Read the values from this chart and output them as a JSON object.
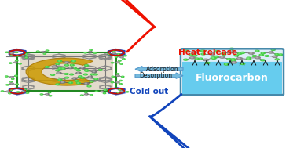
{
  "fig_width": 3.64,
  "fig_height": 1.89,
  "fig_dpi": 100,
  "bg_color": "#ffffff",
  "heat_release_text": "Heat release",
  "heat_release_color": "#ee1100",
  "cold_out_text": "Cold out",
  "cold_out_color": "#1144bb",
  "adsorption_text": "Adsorption",
  "desorption_text": "Desorption",
  "arrow_face_color": "#77bbdd",
  "arrow_edge_color": "#5599cc",
  "fluorocarbon_text": "Fluorocarbon",
  "fluorocarbon_text_color": "#ffffff",
  "box_bg_top": "#ddeef8",
  "box_bg_bottom": "#66ccee",
  "box_border_color": "#4488aa",
  "mol_color_green": "#44cc44",
  "mol_color_gray": "#888888",
  "mol_color_white": "#cccccc",
  "left_color_red": "#cc1100",
  "left_color_blue": "#2244bb",
  "left_color_green": "#228822",
  "left_color_gray": "#777777",
  "left_color_gold": "#cc9900",
  "left_color_beige": "#c8b898"
}
